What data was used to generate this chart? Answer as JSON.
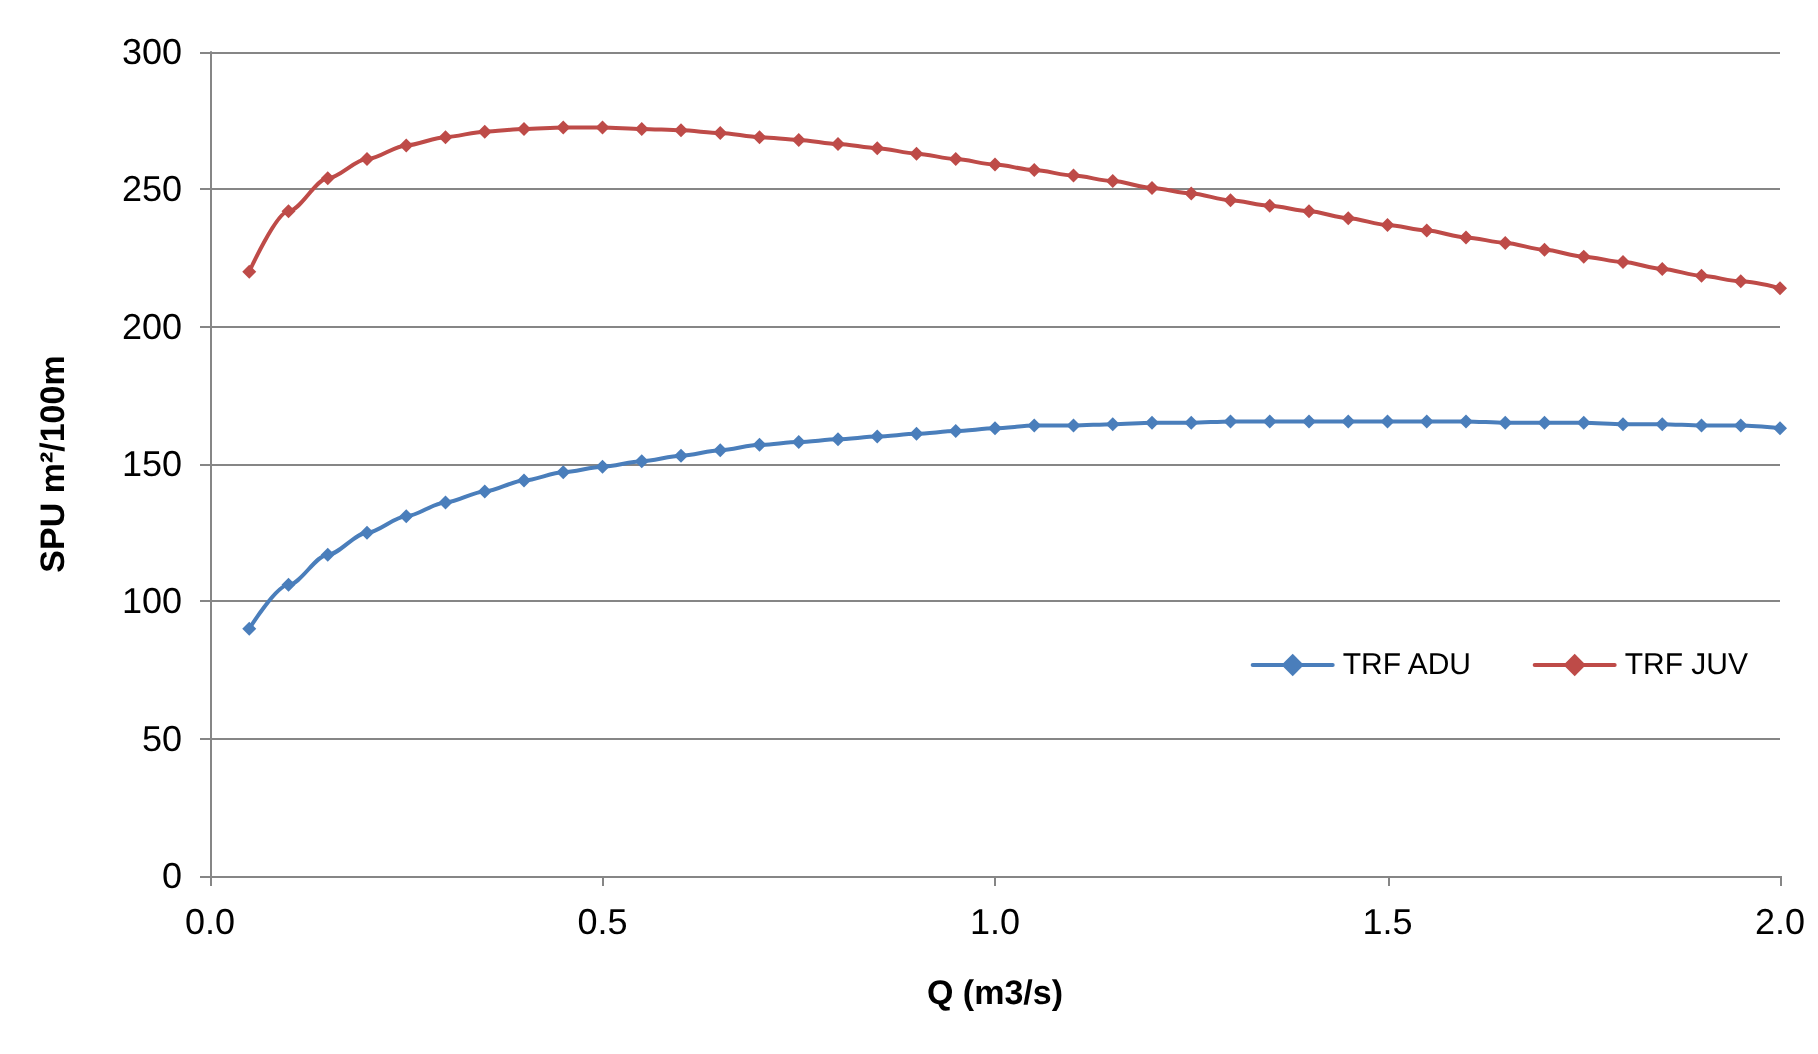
{
  "chart_data": {
    "type": "line",
    "xlabel": "Q (m3/s)",
    "ylabel": "SPU m²/100m",
    "x": [
      0.05,
      0.1,
      0.15,
      0.2,
      0.25,
      0.3,
      0.35,
      0.4,
      0.45,
      0.5,
      0.55,
      0.6,
      0.65,
      0.7,
      0.75,
      0.8,
      0.85,
      0.9,
      0.95,
      1.0,
      1.05,
      1.1,
      1.15,
      1.2,
      1.25,
      1.3,
      1.35,
      1.4,
      1.45,
      1.5,
      1.55,
      1.6,
      1.65,
      1.7,
      1.75,
      1.8,
      1.85,
      1.9,
      1.95,
      2.0
    ],
    "series": [
      {
        "name": "TRF ADU",
        "color": "#4a7ebb",
        "values": [
          90,
          106,
          117,
          125,
          131,
          136,
          140,
          144,
          147,
          149,
          151,
          153,
          155,
          157,
          158,
          159,
          160,
          161,
          162,
          163,
          164,
          164,
          164.5,
          165,
          165,
          165.5,
          165.5,
          165.5,
          165.5,
          165.5,
          165.5,
          165.5,
          165,
          165,
          165,
          164.5,
          164.5,
          164,
          164,
          163
        ]
      },
      {
        "name": "TRF JUV",
        "color": "#be4b48",
        "values": [
          220,
          242,
          254,
          261,
          266,
          269,
          271,
          272,
          272.5,
          272.5,
          272,
          271.5,
          270.5,
          269,
          268,
          266.5,
          265,
          263,
          261,
          259,
          257,
          255,
          253,
          250.5,
          248.5,
          246,
          244,
          242,
          239.5,
          237,
          235,
          232.5,
          230.5,
          228,
          225.5,
          223.5,
          221,
          218.5,
          216.5,
          214
        ]
      }
    ],
    "xlim": [
      0,
      2
    ],
    "xticks": [
      {
        "value": 0,
        "label": "0.0"
      },
      0.5,
      {
        "value": 1,
        "label": "1.0"
      },
      1.5,
      {
        "value": 2,
        "label": "2.0"
      }
    ],
    "ylim": [
      0,
      300
    ],
    "yticks": [
      0,
      50,
      100,
      150,
      200,
      250,
      300
    ],
    "grid": "y",
    "legend": "right",
    "marker": "diamond",
    "line_style": "solid"
  }
}
